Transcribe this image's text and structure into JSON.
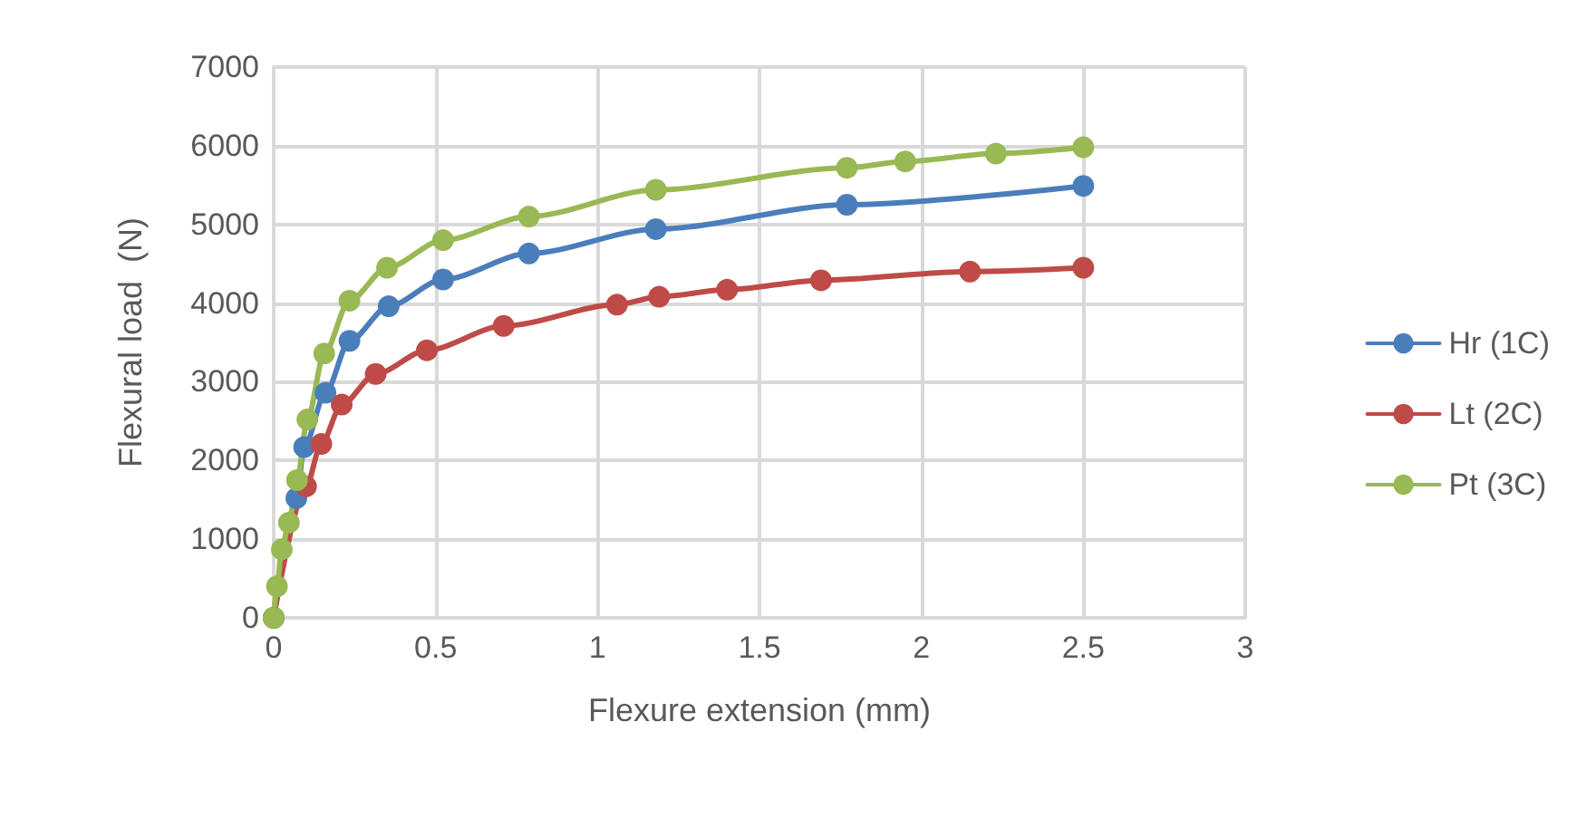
{
  "chart_data": {
    "type": "line",
    "xlabel": "Flexure extension (mm)",
    "ylabel": "Flexural load  (N)",
    "xlim": [
      0,
      3
    ],
    "xticks": [
      0,
      0.5,
      1,
      1.5,
      2,
      2.5,
      3
    ],
    "ylim": [
      0,
      7000
    ],
    "yticks": [
      0,
      1000,
      2000,
      3000,
      4000,
      5000,
      6000,
      7000
    ],
    "grid": true,
    "legend": "right",
    "marker": "circle",
    "line_style": "solid",
    "series": [
      {
        "name": "Hr (1C)",
        "color": "#4a7ebb",
        "x": [
          0,
          0.07,
          0.094,
          0.16,
          0.234,
          0.355,
          0.523,
          0.788,
          1.18,
          1.77,
          2.5
        ],
        "values": [
          0,
          1520,
          2170,
          2860,
          3520,
          3960,
          4300,
          4630,
          4940,
          5250,
          5490
        ]
      },
      {
        "name": "Lt (2C)",
        "color": "#be4b48",
        "x": [
          0,
          0.1,
          0.147,
          0.21,
          0.315,
          0.473,
          0.71,
          1.06,
          1.19,
          1.4,
          1.69,
          2.15,
          2.5
        ],
        "values": [
          0,
          1670,
          2210,
          2710,
          3100,
          3400,
          3710,
          3980,
          4080,
          4170,
          4290,
          4400,
          4450
        ]
      },
      {
        "name": "Pt (3C)",
        "color": "#98b954",
        "x": [
          0,
          0.01,
          0.025,
          0.047,
          0.072,
          0.104,
          0.156,
          0.234,
          0.35,
          0.523,
          0.788,
          1.18,
          1.77,
          1.95,
          2.23,
          2.5
        ],
        "values": [
          0,
          400,
          870,
          1210,
          1750,
          2520,
          3360,
          4030,
          4450,
          4800,
          5100,
          5440,
          5720,
          5800,
          5900,
          5980
        ]
      }
    ]
  }
}
